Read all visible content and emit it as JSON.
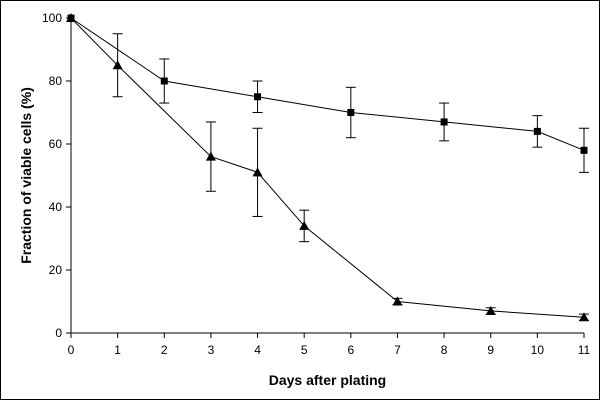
{
  "chart_data": {
    "type": "line",
    "title": "",
    "xlabel": "Days after plating",
    "ylabel": "Fraction of viable cells (%)",
    "xlim": [
      0,
      11
    ],
    "ylim": [
      0,
      100
    ],
    "x_ticks": [
      0,
      1,
      2,
      3,
      4,
      5,
      6,
      7,
      8,
      9,
      10,
      11
    ],
    "y_ticks": [
      0,
      20,
      40,
      60,
      80,
      100
    ],
    "grid": false,
    "legend": "none",
    "series": [
      {
        "marker": "square",
        "color": "#000000",
        "x": [
          0,
          2,
          4,
          6,
          8,
          10,
          11
        ],
        "y": [
          100,
          80,
          75,
          70,
          67,
          64,
          58
        ],
        "err": [
          0,
          7,
          5,
          8,
          6,
          5,
          7
        ]
      },
      {
        "marker": "triangle",
        "color": "#000000",
        "x": [
          0,
          1,
          3,
          4,
          5,
          7,
          9,
          11
        ],
        "y": [
          100,
          85,
          56,
          51,
          34,
          10,
          7,
          5
        ],
        "err": [
          0,
          10,
          11,
          14,
          5,
          1,
          1,
          1
        ]
      }
    ]
  }
}
